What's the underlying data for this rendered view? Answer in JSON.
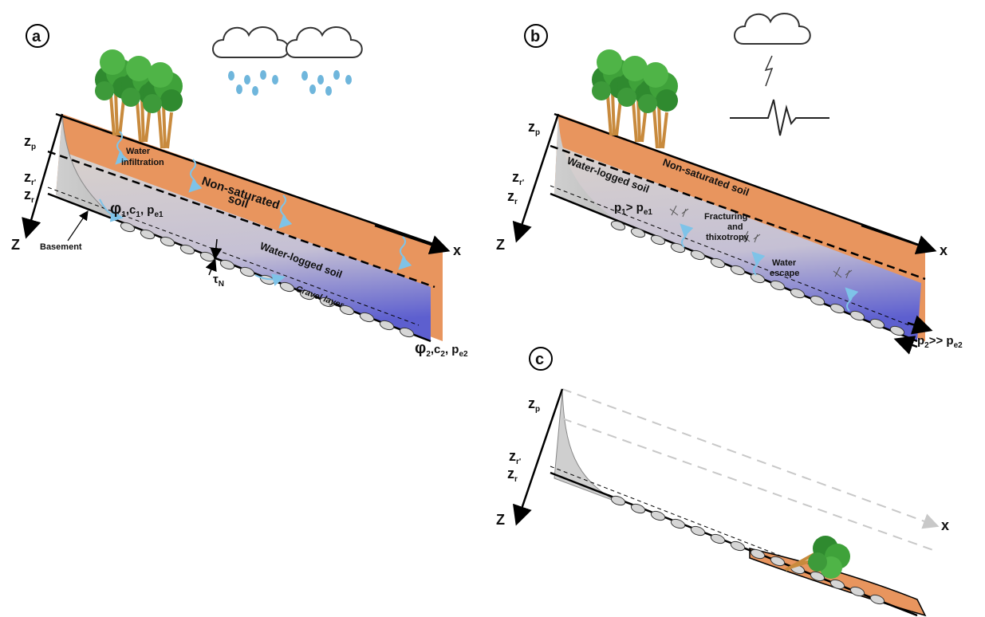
{
  "panels": {
    "a": {
      "letter": "a",
      "z_p": "z",
      "z_p_sub": "p",
      "z_r2": "z",
      "z_r2_sub": "r'",
      "z_r": "z",
      "z_r_sub": "r",
      "axis_z": "Z",
      "axis_x": "x",
      "water_infiltration_1": "Water",
      "water_infiltration_2": "infiltration",
      "non_saturated_1": "Non-saturated",
      "non_saturated_2": "soil",
      "phi1": "φ",
      "phi1_sub": "1",
      "c1": ",c",
      "c1_sub": "1",
      "pe1": ", p",
      "pe1_sub": "e1",
      "basement": "Basement",
      "water_logged": "Water-logged soil",
      "tau": "τ",
      "tau_sub": "N",
      "gravel": "Gravel layer",
      "phi2": "φ",
      "phi2_sub": "2",
      "c2": ",c",
      "c2_sub": "2",
      "pe2": ", p",
      "pe2_sub": "e2"
    },
    "b": {
      "letter": "b",
      "z_p": "z",
      "z_p_sub": "p",
      "z_r2": "z",
      "z_r2_sub": "r'",
      "z_r": "z",
      "z_r_sub": "r",
      "axis_z": "Z",
      "axis_x": "x",
      "water_logged": "Water-logged soil",
      "non_saturated": "Non-saturated soil",
      "p1": "p",
      "p1_sub": "1",
      "gt": "> p",
      "gt_sub": "e1",
      "fracturing_1": "Fracturing",
      "fracturing_2": "and",
      "fracturing_3": "thixotropy",
      "water_escape_1": "Water",
      "water_escape_2": "escape",
      "p2": "p",
      "p2_sub": "2",
      "p2_gt": ">> p",
      "p2_gt_sub": "e2"
    },
    "c": {
      "letter": "c",
      "z_p": "z",
      "z_p_sub": "p",
      "z_r2": "z",
      "z_r2_sub": "r'",
      "z_r": "z",
      "z_r_sub": "r",
      "axis_z": "Z",
      "axis_x": "x"
    }
  },
  "colors": {
    "soil_orange": "#e8955e",
    "waterlogged_grey": "#cfc9c6",
    "gravel_blue": "#6f6fd0",
    "water_blue": "#7ec3e8",
    "tree_green": "#3d9a3a",
    "trunk": "#c88a3d"
  }
}
